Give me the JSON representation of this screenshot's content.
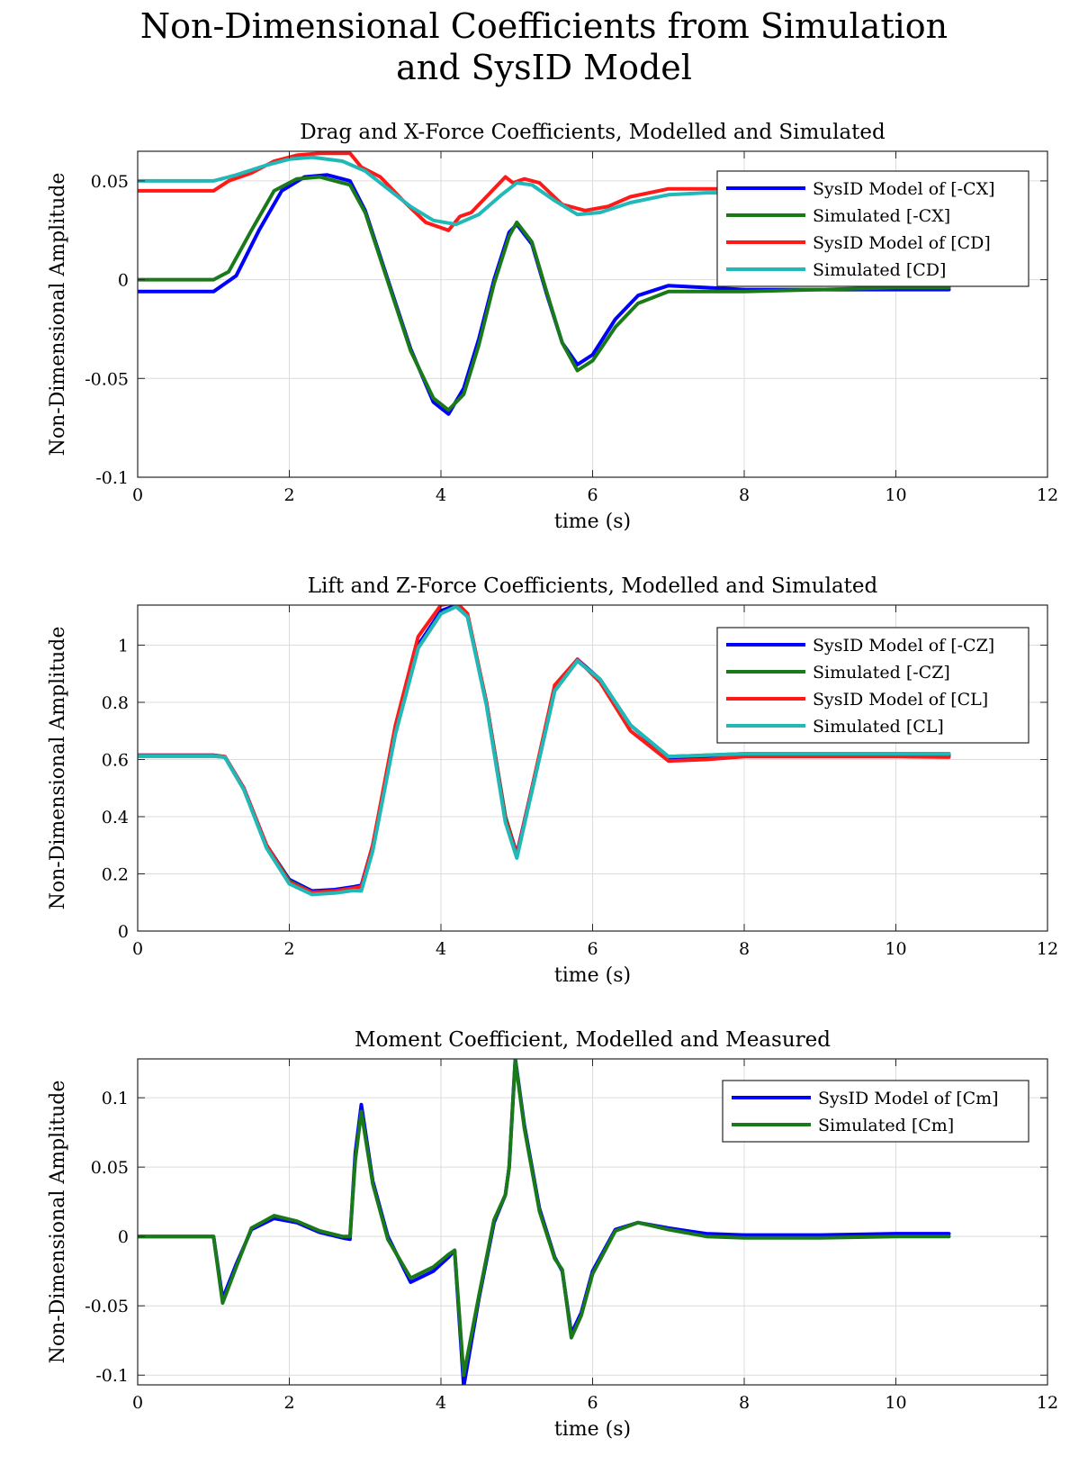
{
  "figure_title": {
    "line1": "Non-Dimensional Coefficients from Simulation",
    "line2": "and SysID Model"
  },
  "colors": {
    "blue": "#0000ff",
    "green": "#1a7a1a",
    "red": "#ff1a1a",
    "cyan": "#22b8b8",
    "grid": "#dcdcdc"
  },
  "chart_data": [
    {
      "type": "line",
      "title": "Drag and X-Force Coefficients, Modelled and Simulated",
      "xlabel": "time (s)",
      "ylabel": "Non-Dimensional Amplitude",
      "xlim": [
        0,
        12
      ],
      "ylim": [
        -0.1,
        0.065
      ],
      "xticks": [
        0,
        2,
        4,
        6,
        8,
        10,
        12
      ],
      "xtick_labels": [
        "0",
        "2",
        "4",
        "6",
        "8",
        "10",
        "12"
      ],
      "yticks": [
        -0.1,
        -0.05,
        0,
        0.05
      ],
      "ytick_labels": [
        "-0.1",
        "-0.05",
        "0",
        "0.05"
      ],
      "grid": true,
      "legend_position": "top-right",
      "series": [
        {
          "name": "SysID Model of [-CX]",
          "color": "blue",
          "x": [
            0,
            1.0,
            1.3,
            1.6,
            1.9,
            2.2,
            2.5,
            2.8,
            3.0,
            3.3,
            3.6,
            3.9,
            4.1,
            4.3,
            4.5,
            4.7,
            4.9,
            5.0,
            5.2,
            5.4,
            5.6,
            5.8,
            6.0,
            6.3,
            6.6,
            7.0,
            7.5,
            8.0,
            9.0,
            10.0,
            10.7
          ],
          "y": [
            -0.006,
            -0.006,
            0.002,
            0.025,
            0.045,
            0.052,
            0.053,
            0.05,
            0.035,
            0.0,
            -0.035,
            -0.062,
            -0.068,
            -0.055,
            -0.03,
            0.0,
            0.024,
            0.028,
            0.018,
            -0.008,
            -0.032,
            -0.043,
            -0.038,
            -0.02,
            -0.008,
            -0.003,
            -0.004,
            -0.005,
            -0.005,
            -0.005,
            -0.005
          ]
        },
        {
          "name": "Simulated [-CX]",
          "color": "green",
          "x": [
            0,
            1.0,
            1.2,
            1.5,
            1.8,
            2.1,
            2.4,
            2.8,
            3.0,
            3.3,
            3.6,
            3.9,
            4.1,
            4.3,
            4.5,
            4.7,
            4.9,
            5.0,
            5.2,
            5.4,
            5.6,
            5.8,
            6.0,
            6.3,
            6.6,
            7.0,
            7.5,
            8.0,
            9.0,
            10.0,
            10.7
          ],
          "y": [
            0.0,
            0.0,
            0.004,
            0.025,
            0.045,
            0.051,
            0.052,
            0.048,
            0.034,
            -0.001,
            -0.036,
            -0.06,
            -0.066,
            -0.058,
            -0.033,
            -0.002,
            0.022,
            0.029,
            0.019,
            -0.007,
            -0.032,
            -0.046,
            -0.041,
            -0.024,
            -0.012,
            -0.006,
            -0.006,
            -0.006,
            -0.005,
            -0.004,
            -0.004
          ]
        },
        {
          "name": "SysID Model of [CD]",
          "color": "red",
          "x": [
            0,
            1.0,
            1.2,
            1.5,
            1.8,
            2.1,
            2.4,
            2.8,
            2.95,
            3.2,
            3.5,
            3.8,
            4.1,
            4.25,
            4.4,
            4.6,
            4.85,
            4.95,
            5.1,
            5.3,
            5.6,
            5.9,
            6.2,
            6.5,
            7.0,
            7.5,
            8.0,
            8.5
          ],
          "y": [
            0.045,
            0.045,
            0.05,
            0.054,
            0.06,
            0.063,
            0.064,
            0.064,
            0.057,
            0.052,
            0.04,
            0.029,
            0.025,
            0.032,
            0.034,
            0.042,
            0.052,
            0.049,
            0.051,
            0.049,
            0.038,
            0.035,
            0.037,
            0.042,
            0.046,
            0.046,
            0.046,
            0.046
          ]
        },
        {
          "name": "Simulated [CD]",
          "color": "cyan",
          "x": [
            0,
            1.0,
            1.3,
            1.7,
            2.0,
            2.3,
            2.7,
            3.0,
            3.3,
            3.6,
            3.9,
            4.2,
            4.5,
            4.8,
            5.0,
            5.2,
            5.5,
            5.8,
            6.1,
            6.5,
            7.0,
            7.5,
            8.0,
            8.5
          ],
          "y": [
            0.05,
            0.05,
            0.053,
            0.058,
            0.061,
            0.062,
            0.06,
            0.055,
            0.046,
            0.037,
            0.03,
            0.028,
            0.033,
            0.043,
            0.049,
            0.048,
            0.04,
            0.033,
            0.034,
            0.039,
            0.043,
            0.044,
            0.044,
            0.044
          ]
        }
      ]
    },
    {
      "type": "line",
      "title": "Lift and Z-Force Coefficients, Modelled and Simulated",
      "xlabel": "time (s)",
      "ylabel": "Non-Dimensional Amplitude",
      "xlim": [
        0,
        12
      ],
      "ylim": [
        0,
        1.14
      ],
      "xticks": [
        0,
        2,
        4,
        6,
        8,
        10,
        12
      ],
      "xtick_labels": [
        "0",
        "2",
        "4",
        "6",
        "8",
        "10",
        "12"
      ],
      "yticks": [
        0,
        0.2,
        0.4,
        0.6,
        0.8,
        1
      ],
      "ytick_labels": [
        "0",
        "0.2",
        "0.4",
        "0.6",
        "0.8",
        "1"
      ],
      "grid": true,
      "legend_position": "top-right",
      "series": [
        {
          "name": "SysID Model of [-CZ]",
          "color": "blue",
          "x": [
            0,
            1.0,
            1.15,
            1.4,
            1.7,
            2.0,
            2.3,
            2.6,
            2.85,
            2.95,
            3.1,
            3.4,
            3.7,
            4.0,
            4.2,
            4.35,
            4.6,
            4.85,
            5.0,
            5.2,
            5.5,
            5.8,
            6.1,
            6.5,
            7.0,
            7.5,
            8.0,
            9.0,
            10.0,
            10.7
          ],
          "y": [
            0.615,
            0.615,
            0.61,
            0.5,
            0.3,
            0.18,
            0.14,
            0.145,
            0.155,
            0.16,
            0.3,
            0.7,
            1.0,
            1.12,
            1.14,
            1.1,
            0.8,
            0.4,
            0.27,
            0.5,
            0.85,
            0.95,
            0.88,
            0.72,
            0.605,
            0.61,
            0.615,
            0.615,
            0.615,
            0.615
          ]
        },
        {
          "name": "Simulated [-CZ]",
          "color": "green",
          "x": [
            0,
            1.0,
            1.15,
            1.4,
            1.7,
            2.0,
            2.3,
            2.6,
            2.85,
            2.95,
            3.1,
            3.4,
            3.7,
            4.0,
            4.2,
            4.35,
            4.6,
            4.85,
            5.0,
            5.2,
            5.5,
            5.8,
            6.1,
            6.5,
            7.0,
            7.5,
            8.0,
            9.0,
            10.0,
            10.7
          ],
          "y": [
            0.612,
            0.612,
            0.608,
            0.495,
            0.3,
            0.175,
            0.135,
            0.14,
            0.15,
            0.155,
            0.29,
            0.69,
            0.99,
            1.11,
            1.135,
            1.1,
            0.8,
            0.4,
            0.265,
            0.49,
            0.84,
            0.945,
            0.88,
            0.72,
            0.61,
            0.615,
            0.62,
            0.62,
            0.62,
            0.62
          ]
        },
        {
          "name": "SysID Model of [CL]",
          "color": "red",
          "x": [
            0,
            1.0,
            1.15,
            1.4,
            1.7,
            2.0,
            2.3,
            2.6,
            2.85,
            2.95,
            3.1,
            3.4,
            3.7,
            4.0,
            4.2,
            4.35,
            4.6,
            4.85,
            5.0,
            5.2,
            5.5,
            5.8,
            6.1,
            6.5,
            7.0,
            7.5,
            8.0,
            9.0,
            10.0,
            10.7
          ],
          "y": [
            0.615,
            0.615,
            0.61,
            0.5,
            0.3,
            0.17,
            0.135,
            0.14,
            0.15,
            0.155,
            0.3,
            0.72,
            1.03,
            1.14,
            1.15,
            1.11,
            0.8,
            0.39,
            0.265,
            0.5,
            0.86,
            0.95,
            0.87,
            0.7,
            0.595,
            0.6,
            0.61,
            0.61,
            0.61,
            0.608
          ]
        },
        {
          "name": "Simulated [CL]",
          "color": "cyan",
          "x": [
            0,
            1.0,
            1.15,
            1.4,
            1.7,
            2.0,
            2.3,
            2.6,
            2.85,
            2.95,
            3.1,
            3.4,
            3.7,
            4.0,
            4.2,
            4.35,
            4.6,
            4.85,
            5.0,
            5.2,
            5.5,
            5.8,
            6.1,
            6.5,
            7.0,
            7.5,
            8.0,
            9.0,
            10.0,
            10.7
          ],
          "y": [
            0.612,
            0.612,
            0.608,
            0.495,
            0.29,
            0.165,
            0.128,
            0.133,
            0.142,
            0.14,
            0.28,
            0.69,
            0.99,
            1.11,
            1.135,
            1.1,
            0.79,
            0.38,
            0.255,
            0.49,
            0.84,
            0.945,
            0.88,
            0.72,
            0.61,
            0.615,
            0.62,
            0.62,
            0.62,
            0.62
          ]
        }
      ]
    },
    {
      "type": "line",
      "title": "Moment Coefficient, Modelled and Measured",
      "xlabel": "time (s)",
      "ylabel": "Non-Dimensional Amplitude",
      "xlim": [
        0,
        12
      ],
      "ylim": [
        -0.107,
        0.128
      ],
      "xticks": [
        0,
        2,
        4,
        6,
        8,
        10,
        12
      ],
      "xtick_labels": [
        "0",
        "2",
        "4",
        "6",
        "8",
        "10",
        "12"
      ],
      "yticks": [
        -0.1,
        -0.05,
        0,
        0.05,
        0.1
      ],
      "ytick_labels": [
        "-0.1",
        "-0.05",
        "0",
        "0.05",
        "0.1"
      ],
      "grid": true,
      "legend_position": "top-right",
      "series": [
        {
          "name": "SysID Model of [Cm]",
          "color": "blue",
          "x": [
            0,
            1.0,
            1.12,
            1.3,
            1.5,
            1.8,
            2.1,
            2.4,
            2.7,
            2.8,
            2.87,
            2.95,
            3.1,
            3.3,
            3.6,
            3.9,
            4.1,
            4.18,
            4.3,
            4.5,
            4.7,
            4.85,
            4.9,
            4.98,
            5.1,
            5.3,
            5.5,
            5.6,
            5.72,
            5.85,
            6.0,
            6.3,
            6.6,
            7.0,
            7.5,
            8.0,
            9.0,
            10.0,
            10.7
          ],
          "y": [
            0.0,
            0.0,
            -0.045,
            -0.02,
            0.005,
            0.013,
            0.01,
            0.003,
            -0.001,
            -0.002,
            0.06,
            0.095,
            0.04,
            0.0,
            -0.033,
            -0.025,
            -0.015,
            -0.01,
            -0.108,
            -0.045,
            0.01,
            0.03,
            0.05,
            0.128,
            0.08,
            0.02,
            -0.015,
            -0.025,
            -0.07,
            -0.055,
            -0.025,
            0.005,
            0.01,
            0.006,
            0.002,
            0.001,
            0.001,
            0.002,
            0.002
          ]
        },
        {
          "name": "Simulated [Cm]",
          "color": "green",
          "x": [
            0,
            1.0,
            1.12,
            1.3,
            1.5,
            1.8,
            2.1,
            2.4,
            2.7,
            2.8,
            2.87,
            2.95,
            3.1,
            3.3,
            3.6,
            3.9,
            4.1,
            4.18,
            4.3,
            4.5,
            4.7,
            4.85,
            4.9,
            4.98,
            5.1,
            5.3,
            5.5,
            5.6,
            5.72,
            5.85,
            6.0,
            6.3,
            6.6,
            7.0,
            7.5,
            8.0,
            9.0,
            10.0,
            10.7
          ],
          "y": [
            0.0,
            0.0,
            -0.048,
            -0.022,
            0.006,
            0.015,
            0.011,
            0.004,
            0.0,
            0.0,
            0.055,
            0.09,
            0.038,
            -0.002,
            -0.03,
            -0.022,
            -0.013,
            -0.01,
            -0.1,
            -0.043,
            0.012,
            0.03,
            0.05,
            0.127,
            0.078,
            0.018,
            -0.016,
            -0.024,
            -0.073,
            -0.057,
            -0.027,
            0.004,
            0.01,
            0.005,
            0.0,
            -0.001,
            -0.001,
            0.0,
            0.0
          ]
        }
      ]
    }
  ]
}
